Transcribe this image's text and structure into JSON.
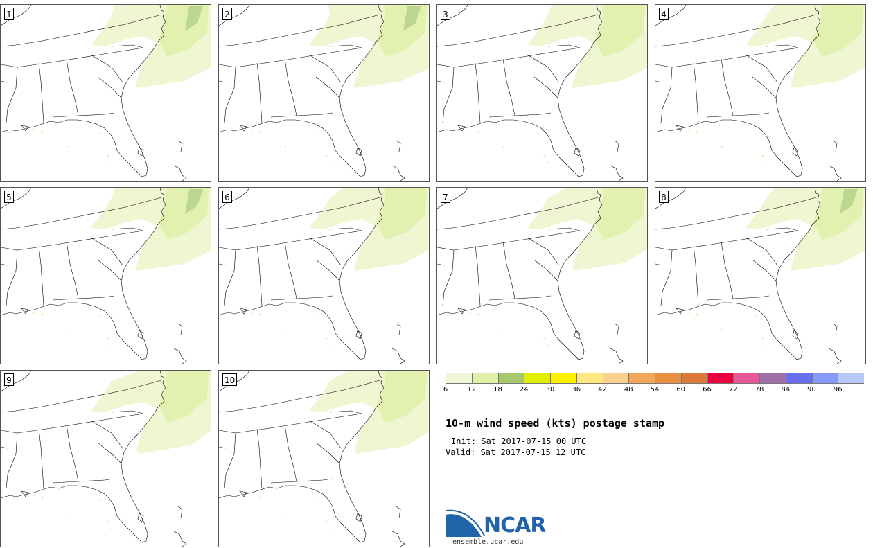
{
  "stamps": [
    {
      "label": "1"
    },
    {
      "label": "2"
    },
    {
      "label": "3"
    },
    {
      "label": "4"
    },
    {
      "label": "5"
    },
    {
      "label": "6"
    },
    {
      "label": "7"
    },
    {
      "label": "8"
    },
    {
      "label": "9"
    },
    {
      "label": "10"
    }
  ],
  "colorbar": {
    "colors": [
      "#f0f7d8",
      "#dff0a8",
      "#a8c870",
      "#e0ee00",
      "#fff000",
      "#ffe880",
      "#f8d090",
      "#f0a858",
      "#e89040",
      "#dc7838",
      "#e80040",
      "#e85898",
      "#a070a8",
      "#6870f0",
      "#8898f8",
      "#b8c8f8"
    ],
    "ticks": [
      "6",
      "12",
      "18",
      "24",
      "30",
      "36",
      "42",
      "48",
      "54",
      "60",
      "66",
      "72",
      "78",
      "84",
      "90",
      "96"
    ]
  },
  "title": "10-m wind speed (kts) postage stamp",
  "init_line": "Init: Sat 2017-07-15 00 UTC",
  "valid_line": "Valid: Sat 2017-07-15 12 UTC",
  "logo": {
    "text": "NCAR",
    "url": "ensemble.ucar.edu",
    "brand_color": "#1f63a8"
  }
}
